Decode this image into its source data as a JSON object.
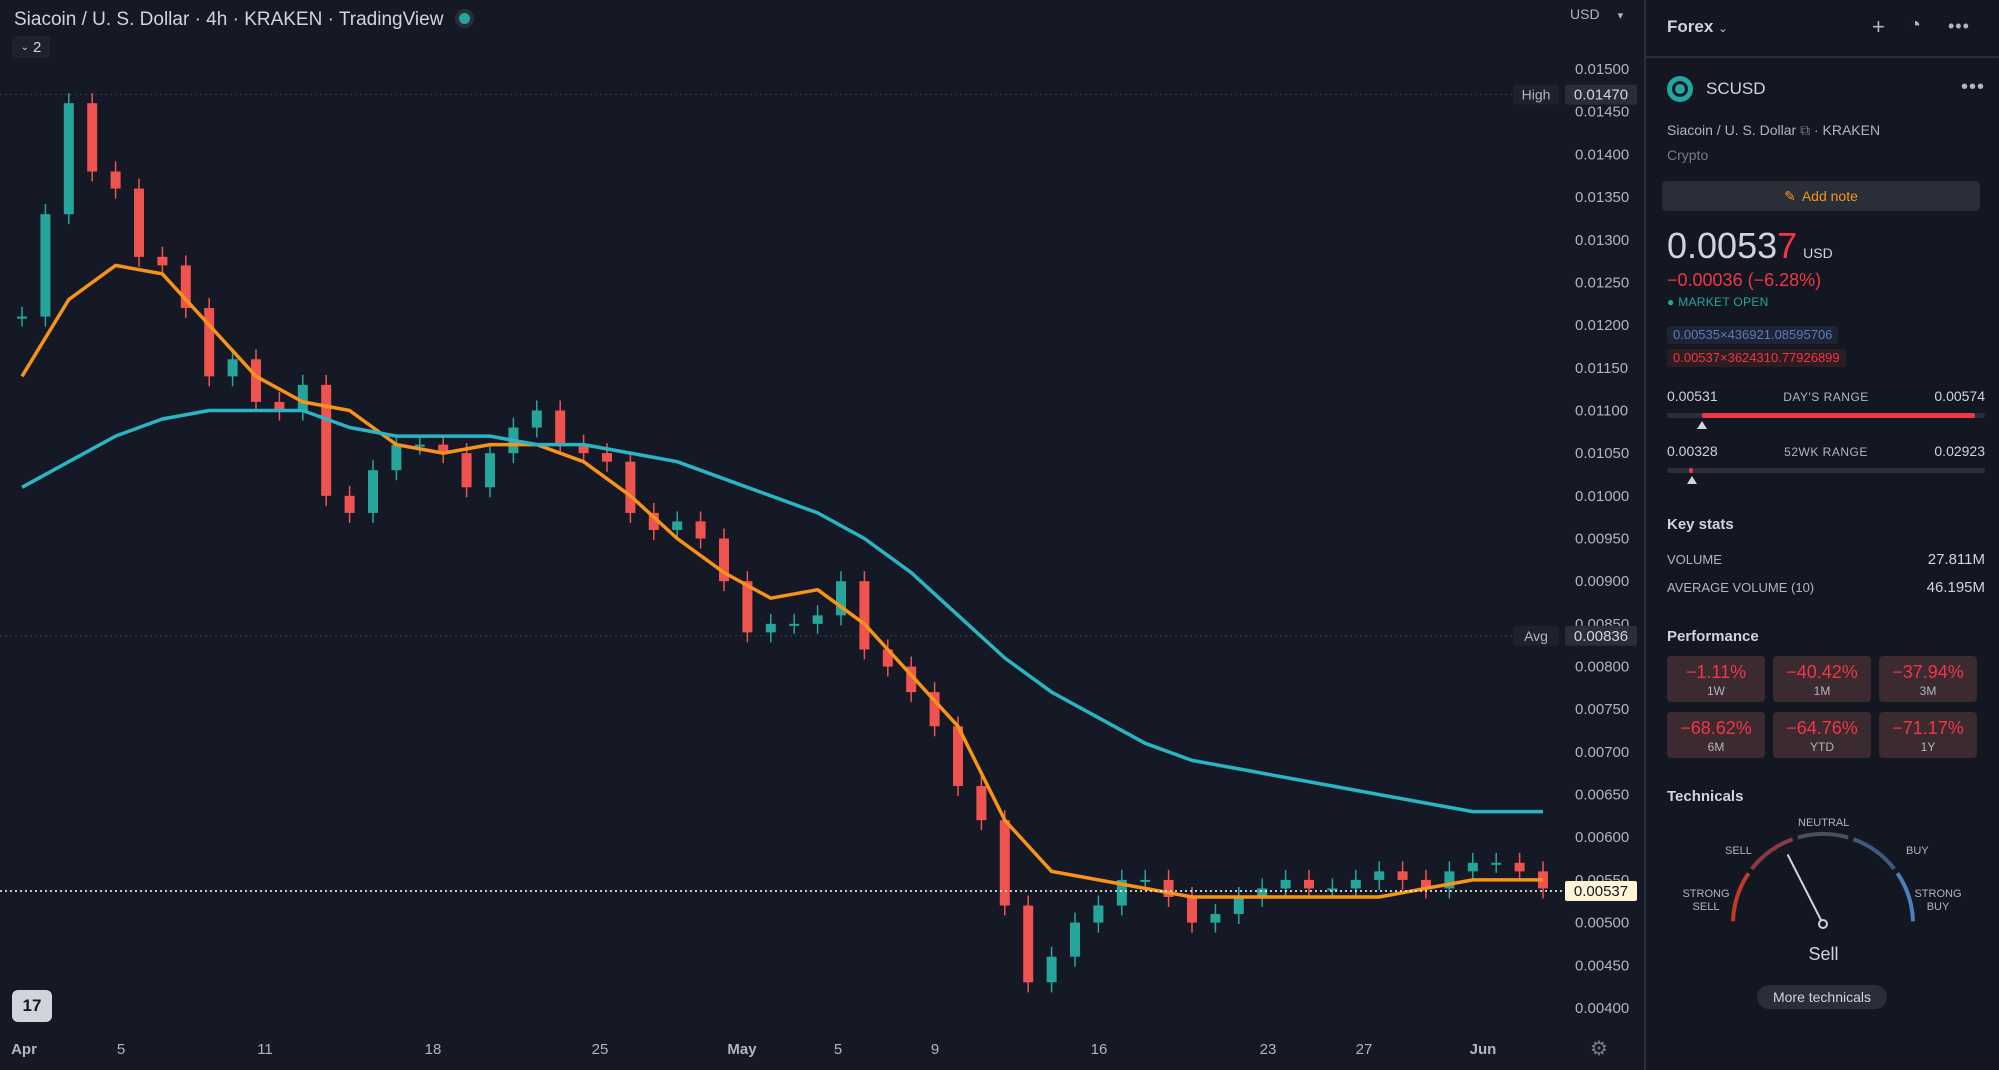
{
  "chart_header": {
    "title": "Siacoin / U. S. Dollar · 4h · KRAKEN · TradingView",
    "collapse_label": "2",
    "currency": "USD",
    "logo_text": "17"
  },
  "chart_data": {
    "type": "line",
    "title": "Siacoin / U. S. Dollar · 4h · KRAKEN · TradingView",
    "xlabel": "",
    "ylabel": "",
    "x_tick_labels": [
      "Apr",
      "5",
      "11",
      "18",
      "25",
      "May",
      "5",
      "9",
      "16",
      "23",
      "27",
      "Jun"
    ],
    "y_tick_labels": [
      "0.01500",
      "0.01450",
      "0.01400",
      "0.01350",
      "0.01300",
      "0.01250",
      "0.01200",
      "0.01150",
      "0.01100",
      "0.01050",
      "0.01000",
      "0.00950",
      "0.00900",
      "0.00850",
      "0.00800",
      "0.00750",
      "0.00700",
      "0.00650",
      "0.00600",
      "0.00550",
      "0.00500",
      "0.00450",
      "0.00400"
    ],
    "ylim": [
      0.0038,
      0.0152
    ],
    "grid": false,
    "high_label": "High",
    "high_value": "0.01470",
    "avg_label": "Avg",
    "avg_value": "0.00836",
    "last_value": "0.00537",
    "colors": {
      "up": "#26a69a",
      "down": "#ef5350",
      "ma_fast": "#f7931a",
      "ma_slow": "#2bb5c4",
      "last": "#ffffff"
    },
    "series": [
      {
        "type": "candles",
        "x": [
          0,
          1,
          2,
          3,
          4,
          5,
          6,
          7,
          8,
          9,
          10,
          11,
          12,
          13,
          14,
          15,
          16,
          17,
          18,
          19,
          20,
          21,
          22,
          23,
          24,
          25,
          26,
          27,
          28,
          29,
          30,
          31,
          32,
          33,
          34,
          35,
          36,
          37,
          38,
          39,
          40,
          41,
          42,
          43,
          44,
          45,
          46,
          47,
          48,
          49,
          50,
          51,
          52,
          53,
          54,
          55,
          56,
          57,
          58,
          59,
          60,
          61,
          62,
          63,
          64,
          65
        ],
        "values": [
          0.0121,
          0.0133,
          0.0146,
          0.0138,
          0.0136,
          0.0128,
          0.0127,
          0.0122,
          0.0114,
          0.0116,
          0.0111,
          0.011,
          0.0113,
          0.01,
          0.0098,
          0.0103,
          0.0106,
          0.0106,
          0.0105,
          0.0101,
          0.0105,
          0.0108,
          0.011,
          0.0106,
          0.0105,
          0.0104,
          0.0098,
          0.0096,
          0.0097,
          0.0095,
          0.009,
          0.0084,
          0.0085,
          0.0085,
          0.0086,
          0.009,
          0.0082,
          0.008,
          0.0077,
          0.0073,
          0.0066,
          0.0062,
          0.0052,
          0.0043,
          0.0046,
          0.005,
          0.0052,
          0.0055,
          0.0055,
          0.0053,
          0.005,
          0.0051,
          0.0053,
          0.0054,
          0.0055,
          0.0054,
          0.0054,
          0.0055,
          0.0056,
          0.0055,
          0.0054,
          0.0056,
          0.0057,
          0.0057,
          0.0056,
          0.0054
        ]
      },
      {
        "type": "line",
        "x": [
          0,
          2,
          4,
          6,
          8,
          10,
          12,
          14,
          16,
          18,
          20,
          22,
          24,
          26,
          28,
          30,
          32,
          34,
          36,
          38,
          40,
          42,
          44,
          46,
          48,
          50,
          52,
          54,
          56,
          58,
          60,
          62,
          64,
          65
        ],
        "values": [
          0.0114,
          0.0123,
          0.0127,
          0.0126,
          0.012,
          0.0114,
          0.0111,
          0.011,
          0.0106,
          0.0105,
          0.0106,
          0.0106,
          0.0104,
          0.01,
          0.0095,
          0.0091,
          0.0088,
          0.0089,
          0.0085,
          0.0079,
          0.0073,
          0.0062,
          0.0056,
          0.0055,
          0.0054,
          0.0053,
          0.0053,
          0.0053,
          0.0053,
          0.0053,
          0.0054,
          0.0055,
          0.0055,
          0.0055
        ]
      },
      {
        "type": "line",
        "x": [
          0,
          2,
          4,
          6,
          8,
          10,
          12,
          14,
          16,
          18,
          20,
          22,
          24,
          26,
          28,
          30,
          32,
          34,
          36,
          38,
          40,
          42,
          44,
          46,
          48,
          50,
          52,
          54,
          56,
          58,
          60,
          62,
          64,
          65
        ],
        "values": [
          0.0101,
          0.0104,
          0.0107,
          0.0109,
          0.011,
          0.011,
          0.011,
          0.0108,
          0.0107,
          0.0107,
          0.0107,
          0.0106,
          0.0106,
          0.0105,
          0.0104,
          0.0102,
          0.01,
          0.0098,
          0.0095,
          0.0091,
          0.0086,
          0.0081,
          0.0077,
          0.0074,
          0.0071,
          0.0069,
          0.0068,
          0.0067,
          0.0066,
          0.0065,
          0.0064,
          0.0063,
          0.0063,
          0.0063
        ]
      }
    ]
  },
  "panel": {
    "watchlist": "Forex",
    "symbol": "SCUSD",
    "full_name": "Siacoin / U. S. Dollar",
    "exchange": "KRAKEN",
    "type": "Crypto",
    "add_note": "Add note",
    "price_main": "0.0053",
    "price_last_digit": "7",
    "price_currency": "USD",
    "change": "−0.00036 (−6.28%)",
    "market_status": "MARKET OPEN",
    "bid": "0.00535×436921.08595706",
    "ask": "0.00537×3624310.77926899",
    "days_range": {
      "low": "0.00531",
      "label": "DAY'S RANGE",
      "high": "0.00574",
      "fill_start": 0.11,
      "fill_end": 0.97,
      "marker": 0.11
    },
    "wk52_range": {
      "low": "0.00328",
      "label": "52WK RANGE",
      "high": "0.02923",
      "fill_start": 0.07,
      "fill_end": 0.08,
      "marker": 0.08
    },
    "key_stats_title": "Key stats",
    "volume_label": "VOLUME",
    "volume": "27.811M",
    "avg_volume_label": "AVERAGE VOLUME (10)",
    "avg_volume": "46.195M",
    "performance_title": "Performance",
    "performance": [
      {
        "value": "−1.11%",
        "label": "1W"
      },
      {
        "value": "−40.42%",
        "label": "1M"
      },
      {
        "value": "−37.94%",
        "label": "3M"
      },
      {
        "value": "−68.62%",
        "label": "6M"
      },
      {
        "value": "−64.76%",
        "label": "YTD"
      },
      {
        "value": "−71.17%",
        "label": "1Y"
      }
    ],
    "technicals_title": "Technicals",
    "gauge": {
      "neutral": "NEUTRAL",
      "sell": "SELL",
      "buy": "BUY",
      "strong_sell": "STRONG SELL",
      "strong_buy": "STRONG BUY",
      "result": "Sell",
      "needle_level": 0.35
    },
    "more_technicals": "More technicals"
  }
}
